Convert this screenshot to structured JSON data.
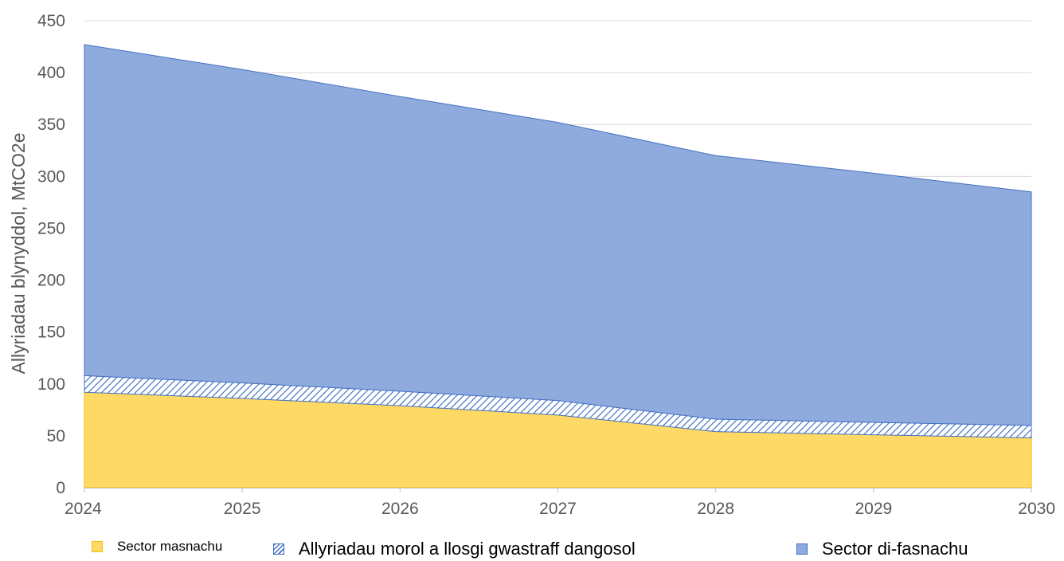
{
  "chart_data": {
    "type": "area",
    "stacked": true,
    "x": [
      "2024",
      "2025",
      "2026",
      "2027",
      "2028",
      "2029",
      "2030"
    ],
    "series": [
      {
        "name": "Sector masnachu",
        "values": [
          92,
          86,
          79,
          70,
          54,
          51,
          48
        ],
        "color": "#FFD966"
      },
      {
        "name": "Allyriadau morol a llosgi gwastraff dangosol",
        "values": [
          16,
          15,
          14,
          14,
          12,
          12,
          12
        ],
        "color": "#4472C4",
        "pattern": "diagonal-hatch"
      },
      {
        "name": "Sector di-fasnachu",
        "values": [
          319,
          302,
          284,
          268,
          254,
          240,
          225
        ],
        "color": "#8FAADC"
      }
    ],
    "ylabel": "Allyriadau blynyddol, MtCO2e",
    "xlabel": "",
    "ylim": [
      0,
      450
    ],
    "yticks": [
      "0",
      "50",
      "100",
      "150",
      "200",
      "250",
      "300",
      "350",
      "400",
      "450"
    ],
    "grid": true,
    "legend_position": "bottom"
  }
}
